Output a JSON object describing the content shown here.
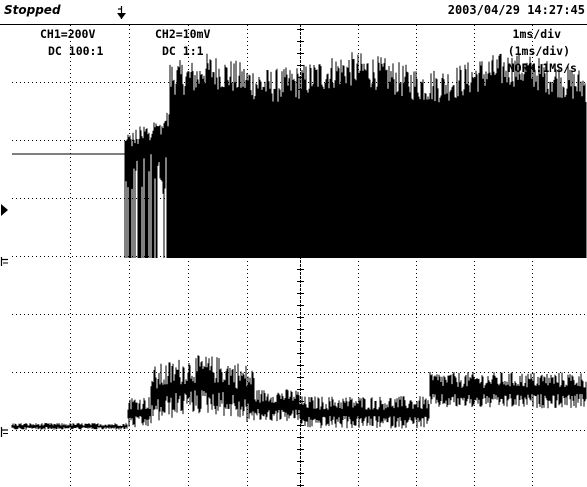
{
  "status": "Stopped",
  "datetime": "2003/04/29  14:27:45",
  "ch1": {
    "scale": "CH1=200V",
    "coupling": "DC  100:1"
  },
  "ch2": {
    "scale": "CH2=10mV",
    "coupling": "DC  1:1"
  },
  "timebase": {
    "main": "1ms/div",
    "sub": "(1ms/div)",
    "mode": "NORM:1MS/s"
  },
  "icons": {
    "trigger": "trigger-position-icon",
    "ground": "ground-marker-icon",
    "trigger_level": "trigger-level-icon"
  }
}
